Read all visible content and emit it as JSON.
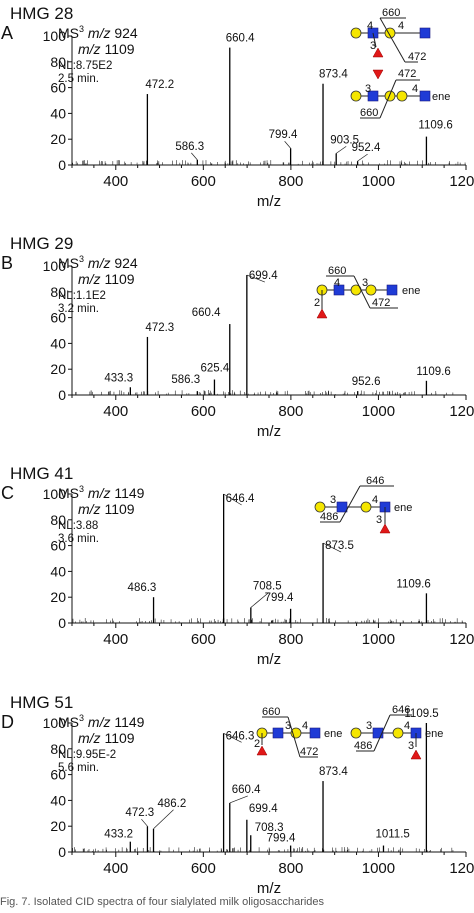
{
  "chart_data": [
    {
      "type": "bar",
      "title": "HMG 28",
      "panel_label": "A",
      "ms_line1": "MS",
      "ms_sup": "3",
      "ms_mz1": "924",
      "ms_mz2": "1109",
      "mz_word": "m/z",
      "nl": "NL:8.75E2",
      "time": "2.5 min.",
      "xlabel": "m/z",
      "xlim": [
        300,
        1200
      ],
      "ylim": [
        0,
        100
      ],
      "xticks": [
        "400",
        "600",
        "800",
        "1000",
        "1200"
      ],
      "yticks": [
        "0",
        "20",
        "40",
        "60",
        "80",
        "100"
      ],
      "peaks": [
        {
          "mz": 472.2,
          "label": "472.2",
          "intensity": 55
        },
        {
          "mz": 586.3,
          "label": "586.3",
          "intensity": 4
        },
        {
          "mz": 660.4,
          "label": "660.4",
          "intensity": 91
        },
        {
          "mz": 799.4,
          "label": "799.4",
          "intensity": 13
        },
        {
          "mz": 873.4,
          "label": "873.4",
          "intensity": 63
        },
        {
          "mz": 903.5,
          "label": "903.5",
          "intensity": 9
        },
        {
          "mz": 952.4,
          "label": "952.4",
          "intensity": 3
        },
        {
          "mz": 1109.6,
          "label": "1109.6",
          "intensity": 22
        }
      ],
      "glycan_labels": [
        "660",
        "4",
        "3",
        "4",
        "3",
        "472",
        "3",
        "4",
        "ene",
        "660",
        "4",
        "3",
        "472",
        "ene"
      ]
    },
    {
      "type": "bar",
      "title": "HMG 29",
      "panel_label": "B",
      "ms_line1": "MS",
      "ms_sup": "3",
      "ms_mz1": "924",
      "ms_mz2": "1109",
      "mz_word": "m/z",
      "nl": "NL:1.1E2",
      "time": "3.2 min.",
      "xlabel": "m/z",
      "xlim": [
        300,
        1200
      ],
      "ylim": [
        0,
        100
      ],
      "xticks": [
        "400",
        "600",
        "800",
        "1000",
        "1200"
      ],
      "yticks": [
        "0",
        "20",
        "40",
        "60",
        "80",
        "100"
      ],
      "peaks": [
        {
          "mz": 433.3,
          "label": "433.3",
          "intensity": 6
        },
        {
          "mz": 472.3,
          "label": "472.3",
          "intensity": 45
        },
        {
          "mz": 586.3,
          "label": "586.3",
          "intensity": 3
        },
        {
          "mz": 625.4,
          "label": "625.4",
          "intensity": 12
        },
        {
          "mz": 660.4,
          "label": "660.4",
          "intensity": 55
        },
        {
          "mz": 699.4,
          "label": "699.4",
          "intensity": 93
        },
        {
          "mz": 952.6,
          "label": "952.6",
          "intensity": 3
        },
        {
          "mz": 1109.6,
          "label": "1109.6",
          "intensity": 11
        }
      ],
      "glycan_labels": [
        "660",
        "4",
        "3",
        "3",
        "4",
        "ene",
        "2",
        "472"
      ]
    },
    {
      "type": "bar",
      "title": "HMG 41",
      "panel_label": "C",
      "ms_line1": "MS",
      "ms_sup": "3",
      "ms_mz1": "1149",
      "ms_mz2": "1109",
      "mz_word": "m/z",
      "nl": "NL:3.88",
      "time": "3.6 min.",
      "xlabel": "m/z",
      "xlim": [
        300,
        1200
      ],
      "ylim": [
        0,
        100
      ],
      "xticks": [
        "400",
        "600",
        "800",
        "1000",
        "1200"
      ],
      "yticks": [
        "0",
        "20",
        "40",
        "60",
        "80",
        "100"
      ],
      "peaks": [
        {
          "mz": 486.3,
          "label": "486.3",
          "intensity": 20
        },
        {
          "mz": 646.4,
          "label": "646.4",
          "intensity": 100
        },
        {
          "mz": 708.5,
          "label": "708.5",
          "intensity": 12
        },
        {
          "mz": 799.4,
          "label": "799.4",
          "intensity": 11
        },
        {
          "mz": 873.5,
          "label": "873.5",
          "intensity": 62
        },
        {
          "mz": 1109.6,
          "label": "1109.6",
          "intensity": 23
        }
      ],
      "glycan_labels": [
        "646",
        "3",
        "4",
        "ene",
        "486",
        "3"
      ]
    },
    {
      "type": "bar",
      "title": "HMG 51",
      "panel_label": "D",
      "ms_line1": "MS",
      "ms_sup": "3",
      "ms_mz1": "1149",
      "ms_mz2": "1109",
      "mz_word": "m/z",
      "nl": "NL:9.95E-2",
      "time": "5.6 min.",
      "xlabel": "m/z",
      "xlim": [
        300,
        1200
      ],
      "ylim": [
        0,
        100
      ],
      "xticks": [
        "400",
        "600",
        "800",
        "1000",
        "1200"
      ],
      "yticks": [
        "0",
        "20",
        "40",
        "60",
        "80",
        "100"
      ],
      "peaks": [
        {
          "mz": 433.2,
          "label": "433.2",
          "intensity": 8
        },
        {
          "mz": 472.3,
          "label": "472.3",
          "intensity": 20
        },
        {
          "mz": 486.2,
          "label": "486.2",
          "intensity": 18
        },
        {
          "mz": 646.3,
          "label": "646.3",
          "intensity": 92
        },
        {
          "mz": 660.4,
          "label": "660.4",
          "intensity": 38
        },
        {
          "mz": 699.4,
          "label": "699.4",
          "intensity": 25
        },
        {
          "mz": 708.3,
          "label": "708.3",
          "intensity": 13
        },
        {
          "mz": 799.4,
          "label": "799.4",
          "intensity": 5
        },
        {
          "mz": 873.4,
          "label": "873.4",
          "intensity": 55
        },
        {
          "mz": 1011.5,
          "label": "1011.5",
          "intensity": 5
        },
        {
          "mz": 1109.5,
          "label": "1109.5",
          "intensity": 100
        }
      ],
      "glycan_labels": [
        "660",
        "3",
        "4",
        "ene",
        "2",
        "472",
        "646",
        "3",
        "4",
        "ene",
        "486",
        "3"
      ]
    }
  ],
  "caption": "Fig. 7. Isolated CID spectra of four sialylated milk oligosaccharides"
}
